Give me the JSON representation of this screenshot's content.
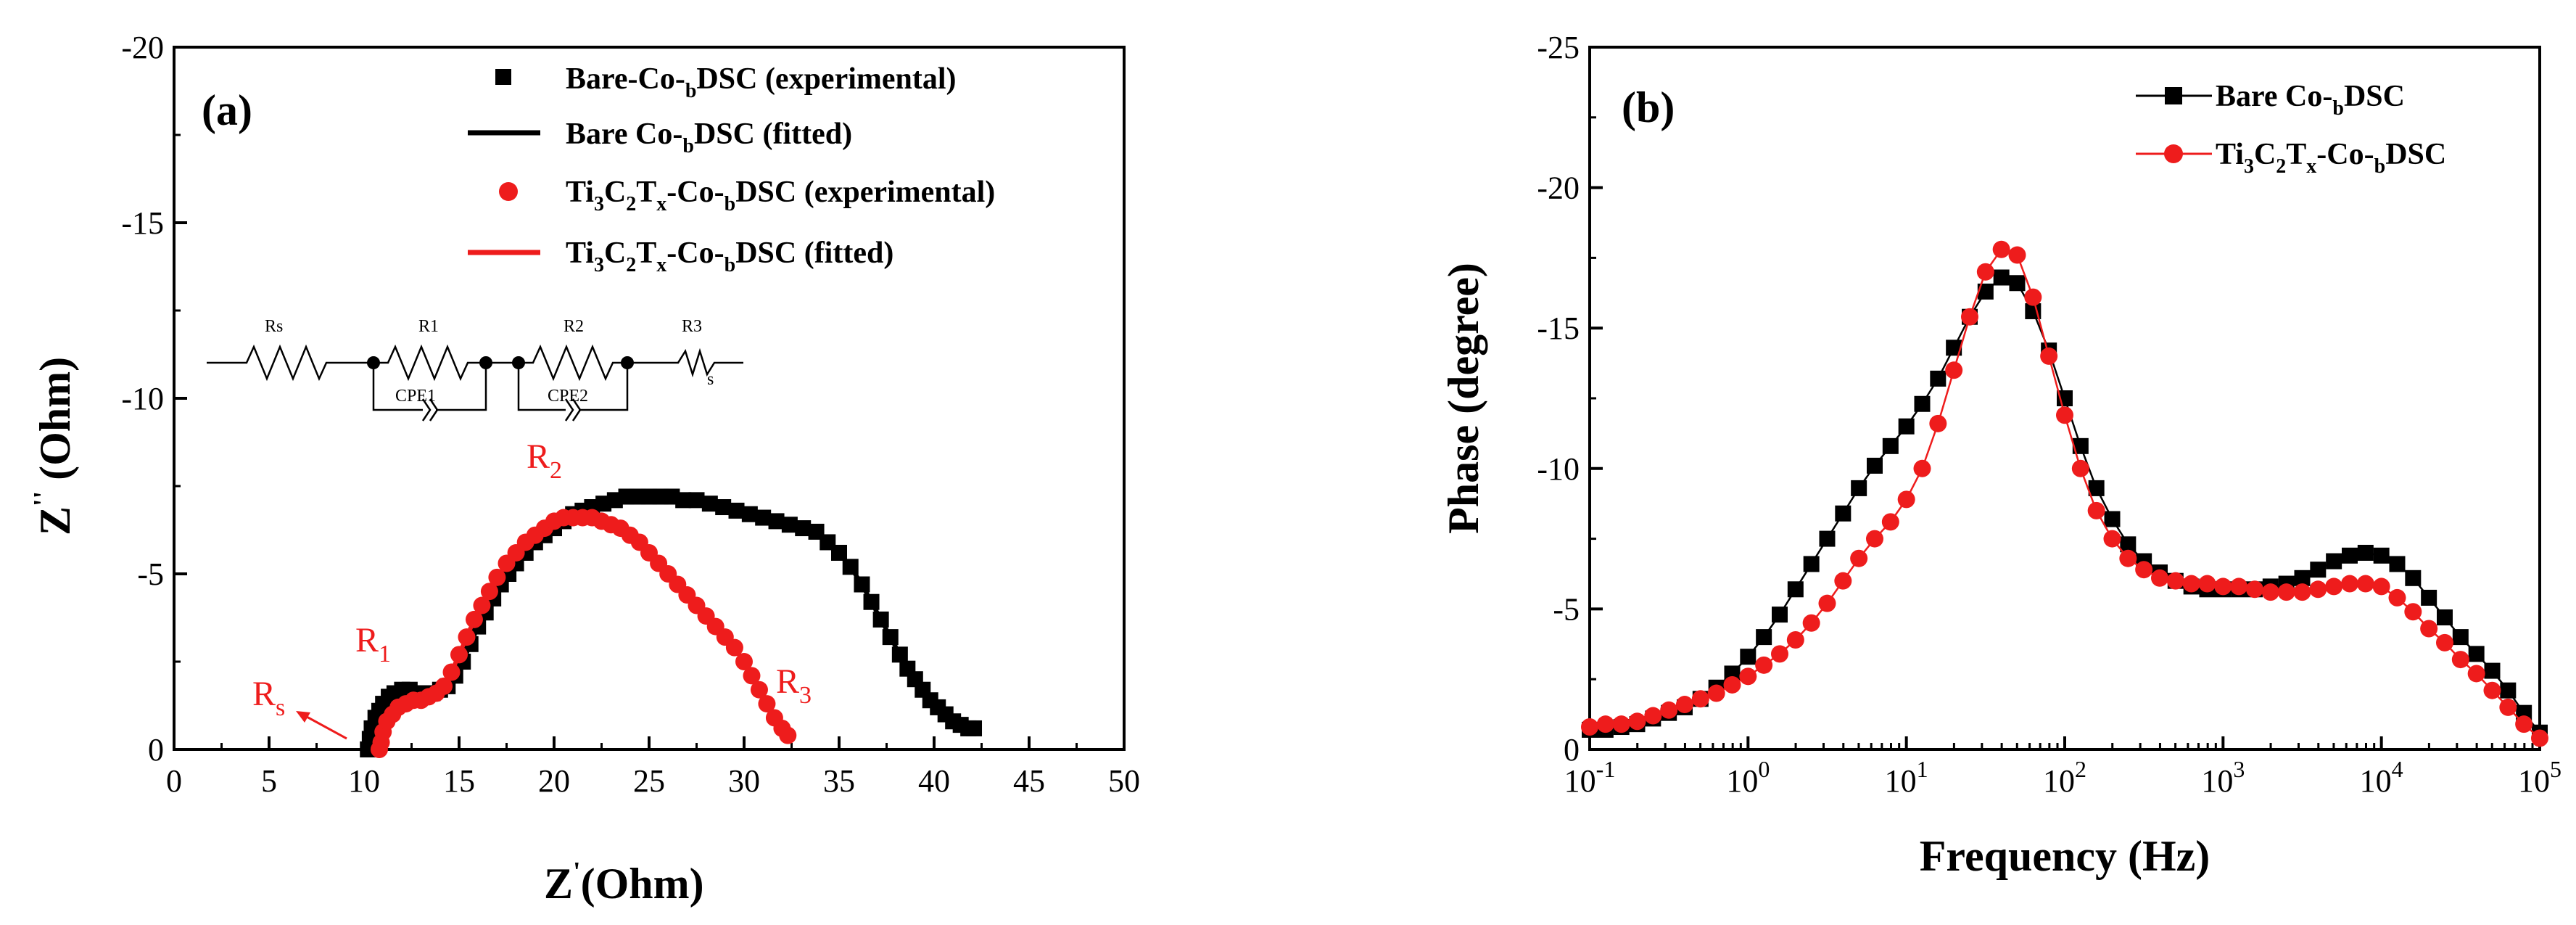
{
  "chart_data": [
    {
      "type": "scatter",
      "panel_label": "(a)",
      "xlabel_main": "Z",
      "xlabel_sup": "'",
      "xlabel_unit": "(Ohm)",
      "ylabel_main": "Z",
      "ylabel_sup": "''",
      "ylabel_unit": " (Ohm)",
      "xlim": [
        0,
        50
      ],
      "ylim": [
        0,
        -20
      ],
      "x_ticks": [
        "0",
        "5",
        "10",
        "15",
        "20",
        "25",
        "30",
        "35",
        "40",
        "45",
        "50"
      ],
      "y_ticks": [
        "0",
        "-5",
        "-10",
        "-15",
        "-20"
      ],
      "legend": [
        {
          "pre": "Bare-Co-",
          "sub": "b",
          "post": "DSC (experimental)"
        },
        {
          "pre": "Bare Co-",
          "sub": "b",
          "post": "DSC (fitted)"
        },
        {
          "pre": "Ti",
          "sub1": "3",
          "mid": "C",
          "sub2": "2",
          "mid2": "T",
          "sub3": "x",
          "mid3": "-Co-",
          "sub4": "b",
          "post": "DSC (experimental)"
        },
        {
          "pre": "Ti",
          "sub1": "3",
          "mid": "C",
          "sub2": "2",
          "mid2": "T",
          "sub3": "x",
          "mid3": "-Co-",
          "sub4": "b",
          "post": "DSC (fitted)"
        }
      ],
      "annotations": {
        "rs": {
          "main": "R",
          "sub": "s"
        },
        "r1": {
          "main": "R",
          "sub": "1"
        },
        "r2": {
          "main": "R",
          "sub": "2"
        },
        "r3": {
          "main": "R",
          "sub": "3"
        }
      },
      "circuit": {
        "rs": "Rs",
        "r1": "R1",
        "r2": "R2",
        "r3": "R3",
        "cpe1": "CPE1",
        "cpe2": "CPE2",
        "ws": "s"
      },
      "series": [
        {
          "name": "Bare Co-bDSC",
          "color": "#000000",
          "marker": "square",
          "x": [
            10.2,
            10.3,
            10.4,
            10.6,
            10.8,
            11.0,
            11.3,
            11.6,
            12.0,
            12.4,
            12.8,
            13.2,
            13.6,
            14.0,
            14.4,
            14.8,
            15.2,
            15.6,
            16.0,
            16.4,
            16.8,
            17.2,
            17.6,
            18.0,
            18.5,
            19.0,
            19.5,
            20.0,
            20.5,
            21.0,
            21.5,
            22.0,
            22.6,
            23.2,
            23.8,
            24.4,
            25.0,
            25.6,
            26.2,
            26.8,
            27.5,
            28.2,
            28.9,
            29.6,
            30.3,
            31.0,
            31.7,
            32.4,
            33.1,
            33.8,
            34.4,
            35.0,
            35.6,
            36.2,
            36.7,
            37.2,
            37.7,
            38.2,
            38.6,
            39.0,
            39.4,
            39.8,
            40.2,
            40.6,
            41.0,
            41.4,
            41.8,
            42.1
          ],
          "y": [
            0.0,
            -0.3,
            -0.6,
            -0.9,
            -1.1,
            -1.3,
            -1.5,
            -1.6,
            -1.7,
            -1.7,
            -1.6,
            -1.6,
            -1.6,
            -1.7,
            -1.8,
            -2.1,
            -2.5,
            -3.0,
            -3.5,
            -3.9,
            -4.3,
            -4.7,
            -5.0,
            -5.3,
            -5.6,
            -5.9,
            -6.1,
            -6.3,
            -6.5,
            -6.7,
            -6.8,
            -6.9,
            -7.0,
            -7.1,
            -7.2,
            -7.2,
            -7.2,
            -7.2,
            -7.2,
            -7.1,
            -7.1,
            -7.0,
            -6.9,
            -6.8,
            -6.7,
            -6.6,
            -6.5,
            -6.4,
            -6.3,
            -6.2,
            -5.9,
            -5.6,
            -5.2,
            -4.7,
            -4.2,
            -3.7,
            -3.2,
            -2.7,
            -2.3,
            -2.0,
            -1.7,
            -1.4,
            -1.2,
            -1.0,
            -0.8,
            -0.7,
            -0.6,
            -0.6
          ]
        },
        {
          "name": "Ti3C2Tx-Co-bDSC",
          "color": "#ee1c1c",
          "marker": "circle",
          "x": [
            10.8,
            10.9,
            11.0,
            11.2,
            11.5,
            11.8,
            12.2,
            12.6,
            13.0,
            13.4,
            13.8,
            14.2,
            14.6,
            15.0,
            15.4,
            15.8,
            16.2,
            16.6,
            17.0,
            17.5,
            18.0,
            18.5,
            19.0,
            19.5,
            20.0,
            20.5,
            21.0,
            21.5,
            22.0,
            22.5,
            23.0,
            23.5,
            24.0,
            24.5,
            25.0,
            25.5,
            26.0,
            26.5,
            27.0,
            27.5,
            28.0,
            28.5,
            29.0,
            29.5,
            30.0,
            30.4,
            30.8,
            31.2,
            31.6,
            32.0,
            32.3
          ],
          "y": [
            0.0,
            -0.2,
            -0.5,
            -0.8,
            -1.0,
            -1.2,
            -1.3,
            -1.4,
            -1.4,
            -1.5,
            -1.6,
            -1.8,
            -2.2,
            -2.7,
            -3.2,
            -3.7,
            -4.1,
            -4.5,
            -4.9,
            -5.3,
            -5.6,
            -5.9,
            -6.1,
            -6.3,
            -6.5,
            -6.6,
            -6.6,
            -6.6,
            -6.6,
            -6.5,
            -6.4,
            -6.3,
            -6.1,
            -5.9,
            -5.6,
            -5.3,
            -5.0,
            -4.7,
            -4.4,
            -4.1,
            -3.8,
            -3.5,
            -3.2,
            -2.9,
            -2.5,
            -2.1,
            -1.7,
            -1.3,
            -0.9,
            -0.6,
            -0.4
          ]
        }
      ]
    },
    {
      "type": "line",
      "panel_label": "(b)",
      "xlabel": "Frequency (Hz)",
      "ylabel": "Phase (degree)",
      "x_scale": "log",
      "xlim": [
        0.1,
        100000
      ],
      "ylim": [
        0,
        -25
      ],
      "x_ticks": [
        {
          "base": "10",
          "exp": "-1"
        },
        {
          "base": "10",
          "exp": "0"
        },
        {
          "base": "10",
          "exp": "1"
        },
        {
          "base": "10",
          "exp": "2"
        },
        {
          "base": "10",
          "exp": "3"
        },
        {
          "base": "10",
          "exp": "4"
        },
        {
          "base": "10",
          "exp": "5"
        }
      ],
      "y_ticks": [
        "0",
        "-5",
        "-10",
        "-15",
        "-20",
        "-25"
      ],
      "legend": [
        {
          "pre": "Bare Co-",
          "sub": "b",
          "post": "DSC"
        },
        {
          "pre": "Ti",
          "sub1": "3",
          "mid": "C",
          "sub2": "2",
          "mid2": "T",
          "sub3": "x",
          "mid3": "-Co-",
          "sub4": "b",
          "post": "DSC"
        }
      ],
      "series": [
        {
          "name": "Bare Co-bDSC",
          "color": "#000000",
          "marker": "square",
          "log_x": [
            -1.0,
            -0.9,
            -0.8,
            -0.7,
            -0.6,
            -0.5,
            -0.4,
            -0.3,
            -0.2,
            -0.1,
            0.0,
            0.1,
            0.2,
            0.3,
            0.4,
            0.5,
            0.6,
            0.7,
            0.8,
            0.9,
            1.0,
            1.1,
            1.2,
            1.3,
            1.4,
            1.5,
            1.6,
            1.7,
            1.8,
            1.9,
            2.0,
            2.1,
            2.2,
            2.3,
            2.4,
            2.5,
            2.6,
            2.7,
            2.8,
            2.9,
            3.0,
            3.1,
            3.2,
            3.3,
            3.4,
            3.5,
            3.6,
            3.7,
            3.8,
            3.9,
            4.0,
            4.1,
            4.2,
            4.3,
            4.4,
            4.5,
            4.6,
            4.7,
            4.8,
            4.9,
            5.0
          ],
          "y": [
            -0.7,
            -0.7,
            -0.8,
            -0.9,
            -1.1,
            -1.3,
            -1.5,
            -1.8,
            -2.2,
            -2.7,
            -3.3,
            -4.0,
            -4.8,
            -5.7,
            -6.6,
            -7.5,
            -8.4,
            -9.3,
            -10.1,
            -10.8,
            -11.5,
            -12.3,
            -13.2,
            -14.3,
            -15.4,
            -16.3,
            -16.8,
            -16.6,
            -15.6,
            -14.2,
            -12.5,
            -10.8,
            -9.3,
            -8.2,
            -7.3,
            -6.7,
            -6.3,
            -6.0,
            -5.8,
            -5.7,
            -5.7,
            -5.7,
            -5.7,
            -5.8,
            -5.9,
            -6.1,
            -6.4,
            -6.7,
            -6.9,
            -7.0,
            -6.9,
            -6.6,
            -6.1,
            -5.4,
            -4.7,
            -4.0,
            -3.4,
            -2.8,
            -2.1,
            -1.3,
            -0.6
          ]
        },
        {
          "name": "Ti3C2Tx-Co-bDSC",
          "color": "#ee1c1c",
          "marker": "circle",
          "log_x": [
            -1.0,
            -0.9,
            -0.8,
            -0.7,
            -0.6,
            -0.5,
            -0.4,
            -0.3,
            -0.2,
            -0.1,
            0.0,
            0.1,
            0.2,
            0.3,
            0.4,
            0.5,
            0.6,
            0.7,
            0.8,
            0.9,
            1.0,
            1.1,
            1.2,
            1.3,
            1.4,
            1.5,
            1.6,
            1.7,
            1.8,
            1.9,
            2.0,
            2.1,
            2.2,
            2.3,
            2.4,
            2.5,
            2.6,
            2.7,
            2.8,
            2.9,
            3.0,
            3.1,
            3.2,
            3.3,
            3.4,
            3.5,
            3.6,
            3.7,
            3.8,
            3.9,
            4.0,
            4.1,
            4.2,
            4.3,
            4.4,
            4.5,
            4.6,
            4.7,
            4.8,
            4.9,
            5.0
          ],
          "y": [
            -0.8,
            -0.9,
            -0.9,
            -1.0,
            -1.2,
            -1.4,
            -1.6,
            -1.8,
            -2.0,
            -2.3,
            -2.6,
            -3.0,
            -3.4,
            -3.9,
            -4.5,
            -5.2,
            -6.0,
            -6.8,
            -7.5,
            -8.1,
            -8.9,
            -10.0,
            -11.6,
            -13.5,
            -15.4,
            -17.0,
            -17.8,
            -17.6,
            -16.1,
            -14.0,
            -11.9,
            -10.0,
            -8.5,
            -7.5,
            -6.8,
            -6.4,
            -6.1,
            -6.0,
            -5.9,
            -5.9,
            -5.8,
            -5.8,
            -5.7,
            -5.6,
            -5.6,
            -5.6,
            -5.7,
            -5.8,
            -5.9,
            -5.9,
            -5.8,
            -5.4,
            -4.9,
            -4.3,
            -3.8,
            -3.2,
            -2.7,
            -2.1,
            -1.5,
            -0.9,
            -0.4
          ]
        }
      ]
    }
  ]
}
